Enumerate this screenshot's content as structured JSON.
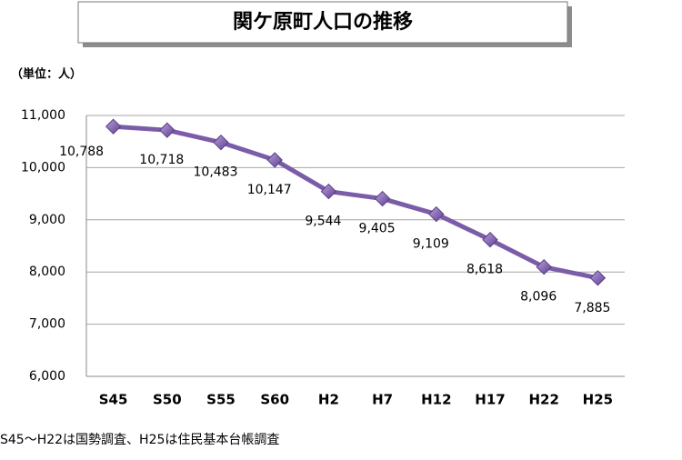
{
  "chart_data": {
    "type": "line",
    "title": "関ケ原町人口の推移",
    "unit_label": "（単位：人）",
    "footnote": "S45～H22は国勢調査、H25は住民基本台帳調査",
    "categories": [
      "S45",
      "S50",
      "S55",
      "S60",
      "H2",
      "H7",
      "H12",
      "H17",
      "H22",
      "H25"
    ],
    "series": [
      {
        "name": "人口",
        "color": "#7b5ca8",
        "values": [
          10788,
          10718,
          10483,
          10147,
          9544,
          9405,
          9109,
          8618,
          8096,
          7885
        ],
        "value_labels": [
          "10,788",
          "10,718",
          "10,483",
          "10,147",
          "9,544",
          "9,405",
          "9,109",
          "8,618",
          "8,096",
          "7,885"
        ]
      }
    ],
    "ylim": [
      6000,
      11000
    ],
    "yticks": [
      {
        "value": 6000,
        "label": "6,000"
      },
      {
        "value": 7000,
        "label": "7,000"
      },
      {
        "value": 8000,
        "label": "8,000"
      },
      {
        "value": 9000,
        "label": "9,000"
      },
      {
        "value": 10000,
        "label": "10,000"
      },
      {
        "value": 11000,
        "label": "11,000"
      }
    ],
    "grid": true
  }
}
